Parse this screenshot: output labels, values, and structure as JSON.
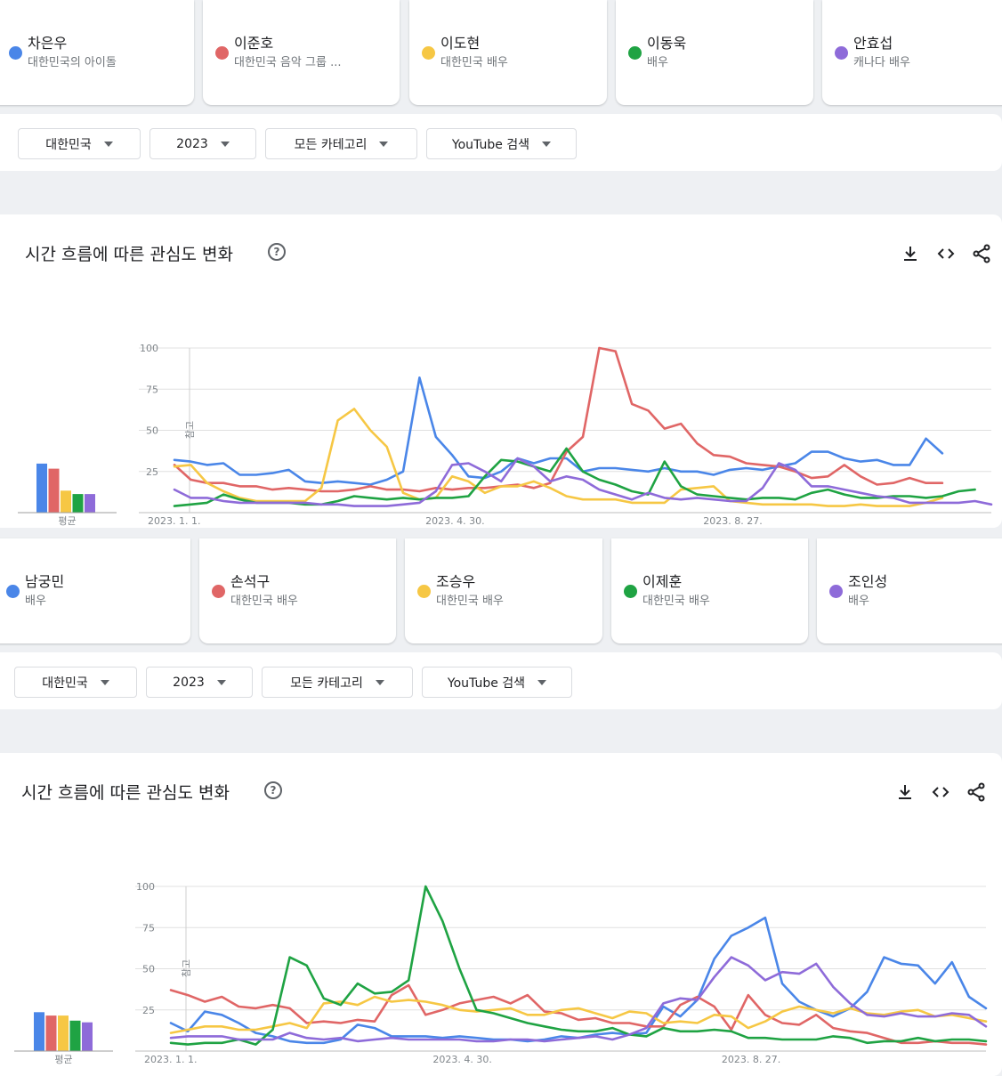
{
  "panels": [
    {
      "terms": [
        {
          "name": "차은우",
          "desc": "대한민국의 아이돌",
          "color": "#4a86e8"
        },
        {
          "name": "이준호",
          "desc": "대한민국 음악 그룹 ...",
          "color": "#e06666"
        },
        {
          "name": "이도현",
          "desc": "대한민국 배우",
          "color": "#f6c744"
        },
        {
          "name": "이동욱",
          "desc": "배우",
          "color": "#1fa343"
        },
        {
          "name": "안효섭",
          "desc": "캐나다 배우",
          "color": "#8e6bd9"
        }
      ],
      "filters": {
        "region": "대한민국",
        "year": "2023",
        "category": "모든 카테고리",
        "source": "YouTube 검색"
      },
      "title": "시간 흐름에 따른 관심도 변화",
      "help": "?",
      "avg_label": "평균",
      "note_label": "참고"
    },
    {
      "terms": [
        {
          "name": "남궁민",
          "desc": "배우",
          "color": "#4a86e8"
        },
        {
          "name": "손석구",
          "desc": "대한민국 배우",
          "color": "#e06666"
        },
        {
          "name": "조승우",
          "desc": "대한민국 배우",
          "color": "#f6c744"
        },
        {
          "name": "이제훈",
          "desc": "대한민국 배우",
          "color": "#1fa343"
        },
        {
          "name": "조인성",
          "desc": "배우",
          "color": "#8e6bd9"
        }
      ],
      "filters": {
        "region": "대한민국",
        "year": "2023",
        "category": "모든 카테고리",
        "source": "YouTube 검색"
      },
      "title": "시간 흐름에 따른 관심도 변화",
      "help": "?",
      "avg_label": "평균",
      "note_label": "참고"
    }
  ],
  "icons": [
    "download-icon",
    "embed-code-icon",
    "share-icon",
    "help-icon",
    "caret-down-icon"
  ],
  "chart_data": [
    {
      "type": "line",
      "y_ticks": [
        100,
        75,
        50,
        25
      ],
      "ylim": [
        0,
        100
      ],
      "x_tick_labels": [
        "2023. 1. 1.",
        "2023. 4. 30.",
        "2023. 8. 27."
      ],
      "x_tick_index": [
        0,
        17,
        34
      ],
      "grid": true,
      "series": [
        {
          "name": "차은우",
          "color": "#4a86e8",
          "average": 29,
          "values": [
            32,
            31,
            29,
            30,
            23,
            23,
            24,
            26,
            19,
            18,
            19,
            18,
            17,
            20,
            25,
            82,
            46,
            35,
            22,
            21,
            25,
            33,
            30,
            33,
            33,
            25,
            27,
            27,
            26,
            25,
            27,
            25,
            25,
            23,
            26,
            27,
            26,
            28,
            30,
            37,
            37,
            33,
            31,
            32,
            29,
            29,
            45,
            36
          ]
        },
        {
          "name": "이준호",
          "color": "#e06666",
          "average": 26,
          "values": [
            29,
            20,
            18,
            18,
            16,
            16,
            14,
            15,
            14,
            13,
            13,
            14,
            16,
            14,
            14,
            13,
            15,
            14,
            15,
            15,
            16,
            17,
            15,
            18,
            37,
            46,
            100,
            98,
            66,
            62,
            51,
            54,
            42,
            35,
            34,
            30,
            29,
            28,
            25,
            21,
            22,
            29,
            22,
            17,
            18,
            21,
            18,
            18
          ]
        },
        {
          "name": "이도현",
          "color": "#f6c744",
          "average": 13,
          "values": [
            28,
            29,
            18,
            13,
            9,
            7,
            7,
            7,
            7,
            15,
            56,
            63,
            50,
            40,
            12,
            8,
            9,
            22,
            19,
            12,
            16,
            16,
            19,
            15,
            10,
            8,
            8,
            8,
            6,
            6,
            6,
            14,
            15,
            16,
            7,
            6,
            5,
            5,
            5,
            5,
            4,
            4,
            5,
            4,
            4,
            4,
            6,
            9
          ]
        },
        {
          "name": "이동욱",
          "color": "#1fa343",
          "average": 11,
          "values": [
            4,
            5,
            6,
            11,
            8,
            6,
            6,
            6,
            5,
            5,
            7,
            10,
            9,
            8,
            9,
            8,
            9,
            9,
            10,
            22,
            32,
            31,
            28,
            25,
            39,
            25,
            20,
            17,
            13,
            11,
            31,
            16,
            11,
            10,
            9,
            8,
            9,
            9,
            8,
            12,
            14,
            11,
            9,
            9,
            10,
            10,
            9,
            10,
            13,
            14
          ]
        },
        {
          "name": "안효섭",
          "color": "#8e6bd9",
          "average": 11,
          "values": [
            14,
            9,
            9,
            7,
            6,
            6,
            6,
            6,
            6,
            5,
            5,
            4,
            4,
            4,
            5,
            6,
            13,
            29,
            30,
            25,
            19,
            33,
            28,
            19,
            22,
            20,
            14,
            11,
            8,
            12,
            9,
            8,
            9,
            8,
            7,
            7,
            15,
            30,
            26,
            16,
            16,
            14,
            12,
            10,
            9,
            6,
            6,
            6,
            6,
            7,
            5
          ]
        }
      ]
    },
    {
      "type": "line",
      "y_ticks": [
        100,
        75,
        50,
        25
      ],
      "ylim": [
        0,
        100
      ],
      "x_tick_labels": [
        "2023. 1. 1.",
        "2023. 4. 30.",
        "2023. 8. 27."
      ],
      "x_tick_index": [
        0,
        17,
        34
      ],
      "grid": true,
      "series": [
        {
          "name": "남궁민",
          "color": "#4a86e8",
          "average": 23,
          "values": [
            17,
            12,
            24,
            22,
            17,
            11,
            9,
            6,
            5,
            5,
            7,
            16,
            14,
            9,
            9,
            9,
            8,
            9,
            8,
            7,
            7,
            6,
            7,
            9,
            8,
            10,
            11,
            10,
            11,
            27,
            21,
            31,
            56,
            70,
            75,
            81,
            41,
            30,
            25,
            21,
            26,
            36,
            57,
            53,
            52,
            41,
            54,
            33,
            26
          ]
        },
        {
          "name": "손석구",
          "color": "#e06666",
          "average": 21,
          "values": [
            37,
            34,
            30,
            33,
            27,
            26,
            28,
            26,
            17,
            18,
            17,
            19,
            18,
            34,
            40,
            22,
            25,
            29,
            31,
            33,
            29,
            34,
            24,
            23,
            19,
            20,
            17,
            17,
            15,
            15,
            28,
            33,
            27,
            13,
            34,
            22,
            17,
            16,
            22,
            14,
            12,
            11,
            8,
            5,
            5,
            6,
            5,
            5,
            4
          ]
        },
        {
          "name": "조승우",
          "color": "#f6c744",
          "average": 21,
          "values": [
            11,
            13,
            15,
            15,
            13,
            13,
            15,
            17,
            14,
            29,
            30,
            28,
            33,
            30,
            31,
            30,
            28,
            25,
            24,
            25,
            26,
            22,
            22,
            25,
            26,
            23,
            20,
            24,
            23,
            17,
            18,
            17,
            22,
            21,
            14,
            18,
            24,
            27,
            25,
            23,
            26,
            23,
            22,
            24,
            25,
            21,
            22,
            20,
            18
          ]
        },
        {
          "name": "이제훈",
          "color": "#1fa343",
          "average": 18,
          "values": [
            5,
            4,
            5,
            5,
            7,
            4,
            13,
            57,
            52,
            32,
            28,
            41,
            35,
            36,
            43,
            100,
            79,
            50,
            25,
            23,
            20,
            17,
            15,
            13,
            12,
            12,
            14,
            10,
            9,
            14,
            12,
            12,
            13,
            12,
            8,
            8,
            7,
            7,
            7,
            9,
            8,
            5,
            6,
            6,
            8,
            6,
            7,
            7,
            6
          ]
        },
        {
          "name": "조인성",
          "color": "#8e6bd9",
          "average": 17,
          "values": [
            8,
            9,
            9,
            9,
            7,
            7,
            7,
            11,
            8,
            7,
            8,
            6,
            7,
            8,
            7,
            7,
            7,
            7,
            6,
            6,
            7,
            7,
            6,
            7,
            8,
            9,
            7,
            10,
            14,
            29,
            32,
            31,
            45,
            57,
            52,
            43,
            48,
            47,
            53,
            39,
            29,
            22,
            21,
            23,
            21,
            21,
            23,
            22,
            15
          ]
        }
      ]
    }
  ]
}
